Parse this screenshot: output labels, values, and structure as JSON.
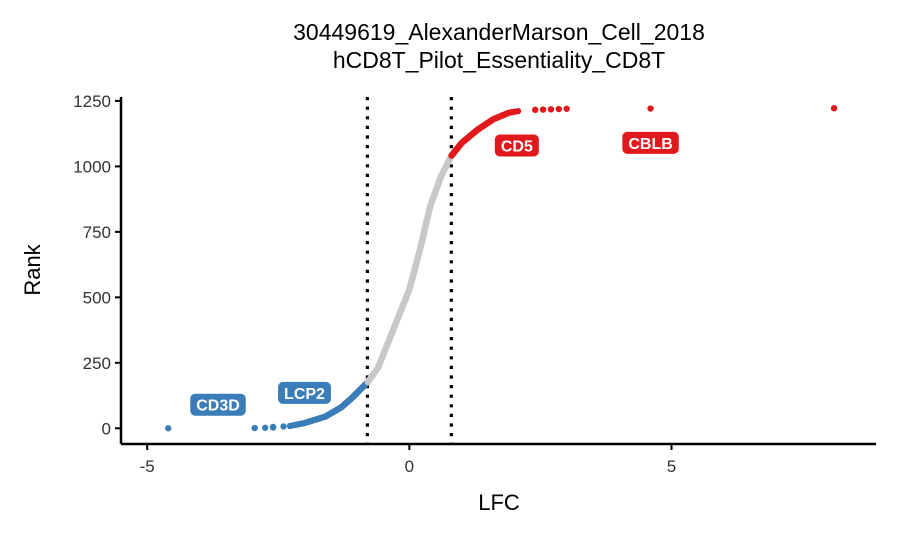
{
  "chart_data": {
    "type": "scatter",
    "title": "30449619_AlexanderMarson_Cell_2018",
    "subtitle": "hCD8T_Pilot_Essentiality_CD8T",
    "xlabel": "LFC",
    "ylabel": "Rank",
    "xlim": [
      -5.5,
      8.9
    ],
    "ylim": [
      -60,
      1265
    ],
    "x_ticks": [
      -5,
      0,
      5
    ],
    "x_tick_labels": [
      "-5",
      "0",
      "5"
    ],
    "y_ticks": [
      0,
      250,
      500,
      750,
      1000,
      1250
    ],
    "y_tick_labels": [
      "0",
      "250",
      "500",
      "750",
      "1000",
      "1250"
    ],
    "grid": false,
    "thresholds": [
      -0.8,
      0.8
    ],
    "colors": {
      "negative": "#3A7DB8",
      "neutral": "#C8C8C8",
      "positive": "#E2191C",
      "threshold": "#000000"
    },
    "curve_anchors": [
      [
        -4.6,
        0
      ],
      [
        -2.9,
        2
      ],
      [
        -2.3,
        8
      ],
      [
        -2.0,
        20
      ],
      [
        -1.6,
        45
      ],
      [
        -1.3,
        80
      ],
      [
        -1.1,
        115
      ],
      [
        -0.95,
        145
      ],
      [
        -0.8,
        175
      ],
      [
        -0.6,
        230
      ],
      [
        -0.4,
        330
      ],
      [
        -0.2,
        430
      ],
      [
        0.0,
        530
      ],
      [
        0.2,
        680
      ],
      [
        0.4,
        850
      ],
      [
        0.6,
        960
      ],
      [
        0.8,
        1040
      ],
      [
        1.0,
        1090
      ],
      [
        1.3,
        1140
      ],
      [
        1.6,
        1180
      ],
      [
        1.9,
        1205
      ],
      [
        2.1,
        1212
      ]
    ],
    "outliers": [
      {
        "x": -4.6,
        "y": 0,
        "group": "negative"
      },
      {
        "x": -2.95,
        "y": 1,
        "group": "negative"
      },
      {
        "x": -2.75,
        "y": 2,
        "group": "negative"
      },
      {
        "x": -2.6,
        "y": 3,
        "group": "negative"
      },
      {
        "x": 2.4,
        "y": 1216,
        "group": "positive"
      },
      {
        "x": 2.55,
        "y": 1217,
        "group": "positive"
      },
      {
        "x": 2.7,
        "y": 1218,
        "group": "positive"
      },
      {
        "x": 2.85,
        "y": 1219,
        "group": "positive"
      },
      {
        "x": 3.0,
        "y": 1220,
        "group": "positive"
      },
      {
        "x": 4.6,
        "y": 1221,
        "group": "positive"
      },
      {
        "x": 8.1,
        "y": 1222,
        "group": "positive"
      }
    ],
    "labels": [
      {
        "text": "CD3D",
        "x": -3.65,
        "y": 90,
        "group": "negative"
      },
      {
        "text": "LCP2",
        "x": -2.0,
        "y": 135,
        "group": "negative"
      },
      {
        "text": "CD5",
        "x": 2.05,
        "y": 1080,
        "group": "positive"
      },
      {
        "text": "CBLB",
        "x": 4.6,
        "y": 1090,
        "group": "positive"
      }
    ]
  }
}
